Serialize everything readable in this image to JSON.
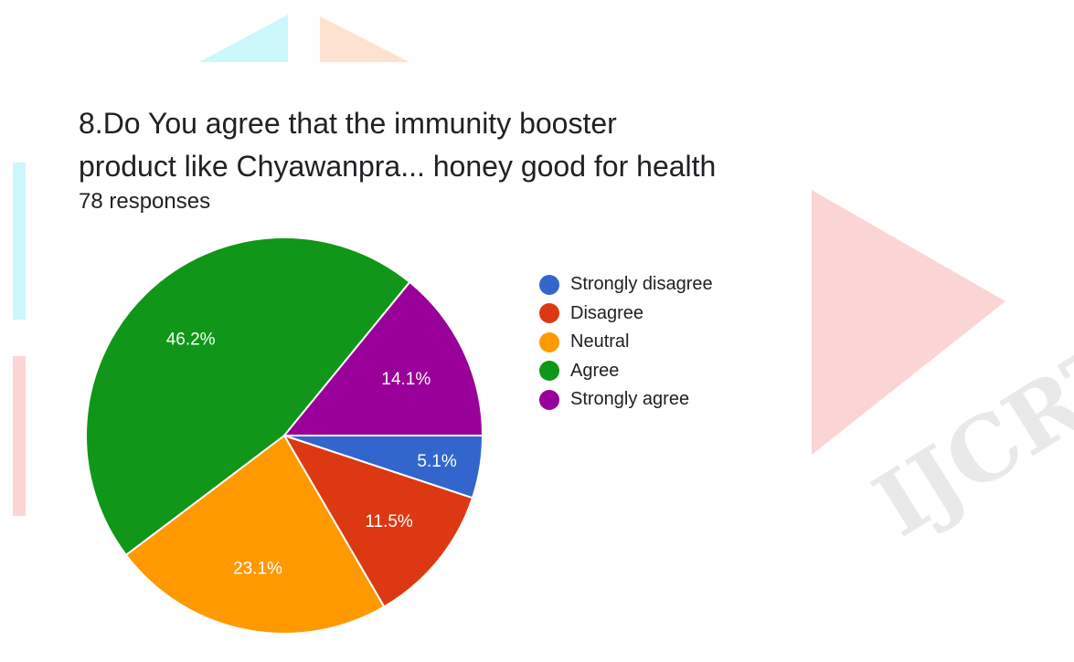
{
  "page": {
    "title_line1": "8.Do You agree that the immunity booster",
    "title_line2": "product like Chyawanpra... honey good for health",
    "responses": "78 responses",
    "watermark": "IJCRT"
  },
  "colors": {
    "strongly_disagree": "#3366cc",
    "disagree": "#dc3912",
    "neutral": "#ff9900",
    "agree": "#109618",
    "strongly_agree": "#990099"
  },
  "chart_data": {
    "type": "pie",
    "title": "8.Do You agree that the immunity booster product like Chyawanpra... honey good for health",
    "subtitle": "78 responses",
    "legend_position": "right",
    "start": "3 o'clock, clockwise",
    "slices": [
      {
        "label": "Strongly disagree",
        "value": 5.1,
        "display": "5.1%",
        "color": "#3366cc"
      },
      {
        "label": "Disagree",
        "value": 11.5,
        "display": "11.5%",
        "color": "#dc3912"
      },
      {
        "label": "Neutral",
        "value": 23.1,
        "display": "23.1%",
        "color": "#ff9900"
      },
      {
        "label": "Agree",
        "value": 46.2,
        "display": "46.2%",
        "color": "#109618"
      },
      {
        "label": "Strongly agree",
        "value": 14.1,
        "display": "14.1%",
        "color": "#990099"
      }
    ]
  }
}
